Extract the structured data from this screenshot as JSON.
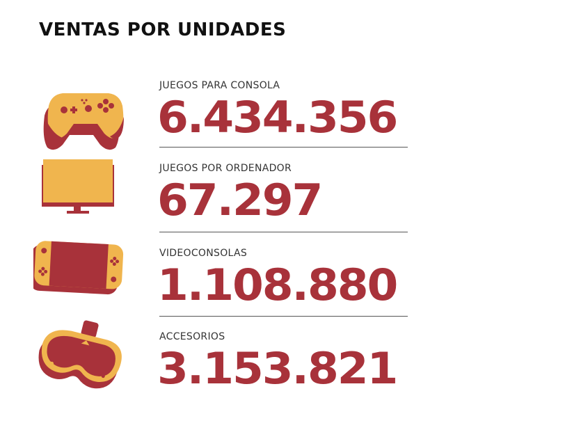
{
  "title": "VENTAS POR UNIDADES",
  "colors": {
    "accent": "#a8323a",
    "secondary": "#f0b54e",
    "text": "#111111"
  },
  "items": [
    {
      "label": "JUEGOS PARA CONSOLA",
      "value": "6.434.356",
      "icon": "gamepad-icon"
    },
    {
      "label": "JUEGOS POR ORDENADOR",
      "value": "67.297",
      "icon": "monitor-icon"
    },
    {
      "label": "VIDEOCONSOLAS",
      "value": "1.108.880",
      "icon": "handheld-console-icon"
    },
    {
      "label": "ACCESORIOS",
      "value": "3.153.821",
      "icon": "vr-headset-icon"
    }
  ]
}
